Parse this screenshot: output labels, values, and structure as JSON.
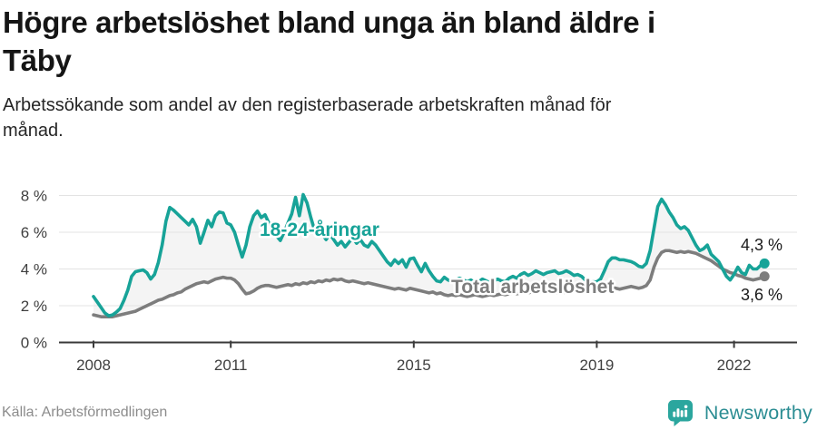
{
  "header": {
    "title_line1": "Högre arbetslöshet bland unga än bland äldre i",
    "title_line2": "Täby",
    "subtitle_line1": "Arbetssökande som andel av den registerbaserade arbetskraften månad för",
    "subtitle_line2": "månad."
  },
  "footer": {
    "source": "Källa: Arbetsförmedlingen",
    "brand": "Newsworthy",
    "brand_text_color": "#2b8d93",
    "logo_badge_color": "#2ba69e"
  },
  "chart_data": {
    "type": "line",
    "x_start": "2008-01",
    "x_end": "2022-09",
    "frequency": "monthly",
    "x_ticks": [
      {
        "label": "2008",
        "year": 2008
      },
      {
        "label": "2011",
        "year": 2011
      },
      {
        "label": "2015",
        "year": 2015
      },
      {
        "label": "2019",
        "year": 2019
      },
      {
        "label": "2022",
        "year": 2022
      }
    ],
    "y_ticks": [
      {
        "label": "0 %",
        "value": 0
      },
      {
        "label": "2 %",
        "value": 2
      },
      {
        "label": "4 %",
        "value": 4
      },
      {
        "label": "6 %",
        "value": 6
      },
      {
        "label": "8 %",
        "value": 8
      }
    ],
    "ylim": [
      0,
      8.5
    ],
    "grid": true,
    "legend_position": "inline-labels",
    "band_fill": "#f4f4f4",
    "grid_color": "#e3e3e3",
    "axis_color": "#3a3a3a",
    "series": [
      {
        "name": "18-24-åringar",
        "inline_label": "18-24-åringar",
        "color": "#17a398",
        "end_label": "4,3 %",
        "end_value": 4.3,
        "values": [
          2.5,
          2.2,
          1.9,
          1.6,
          1.45,
          1.5,
          1.65,
          1.85,
          2.3,
          2.85,
          3.6,
          3.85,
          3.9,
          3.95,
          3.8,
          3.45,
          3.7,
          4.35,
          5.3,
          6.6,
          7.35,
          7.2,
          7.0,
          6.8,
          6.6,
          6.4,
          6.7,
          6.3,
          5.4,
          6.0,
          6.65,
          6.3,
          6.9,
          7.1,
          7.05,
          6.5,
          6.4,
          6.0,
          5.3,
          4.65,
          5.3,
          6.3,
          6.9,
          7.15,
          6.8,
          6.95,
          6.5,
          6.2,
          5.8,
          5.55,
          6.0,
          6.5,
          7.0,
          7.9,
          6.9,
          8.05,
          7.6,
          6.8,
          6.1,
          5.8,
          5.9,
          5.6,
          5.9,
          5.6,
          5.3,
          5.5,
          5.2,
          5.45,
          5.7,
          5.4,
          5.6,
          5.3,
          5.2,
          5.5,
          5.3,
          5.0,
          4.7,
          4.4,
          4.2,
          4.5,
          4.3,
          4.5,
          4.1,
          4.55,
          4.6,
          4.2,
          3.85,
          4.3,
          3.9,
          3.6,
          3.35,
          3.3,
          3.55,
          3.4,
          3.3,
          3.4,
          3.5,
          3.4,
          3.3,
          3.4,
          3.25,
          3.3,
          3.45,
          3.35,
          3.25,
          3.35,
          3.45,
          3.35,
          3.3,
          3.5,
          3.6,
          3.5,
          3.7,
          3.8,
          3.65,
          3.75,
          3.9,
          3.8,
          3.7,
          3.8,
          3.85,
          3.9,
          3.75,
          3.8,
          3.9,
          3.8,
          3.65,
          3.7,
          3.6,
          3.4,
          3.25,
          3.3,
          3.3,
          3.45,
          3.9,
          4.4,
          4.6,
          4.6,
          4.5,
          4.5,
          4.45,
          4.4,
          4.3,
          4.15,
          4.1,
          4.3,
          5.0,
          6.2,
          7.4,
          7.8,
          7.5,
          7.1,
          6.8,
          6.4,
          6.2,
          6.3,
          6.1,
          5.7,
          5.3,
          5.0,
          5.1,
          5.3,
          4.8,
          4.6,
          4.4,
          4.0,
          3.6,
          3.4,
          3.7,
          4.1,
          3.8,
          3.7,
          4.2,
          4.0,
          4.0,
          4.2,
          4.3
        ]
      },
      {
        "name": "Total arbetslöshet",
        "inline_label": "Total arbetslöshet",
        "color": "#7d7d7d",
        "end_label": "3,6 %",
        "end_value": 3.6,
        "values": [
          1.5,
          1.45,
          1.4,
          1.4,
          1.4,
          1.4,
          1.45,
          1.5,
          1.55,
          1.6,
          1.65,
          1.7,
          1.8,
          1.9,
          2.0,
          2.1,
          2.2,
          2.3,
          2.35,
          2.45,
          2.55,
          2.6,
          2.7,
          2.75,
          2.9,
          3.0,
          3.1,
          3.2,
          3.25,
          3.3,
          3.25,
          3.35,
          3.45,
          3.5,
          3.55,
          3.5,
          3.5,
          3.4,
          3.2,
          2.9,
          2.65,
          2.7,
          2.8,
          2.95,
          3.05,
          3.1,
          3.1,
          3.05,
          3.0,
          3.05,
          3.1,
          3.15,
          3.1,
          3.2,
          3.15,
          3.25,
          3.2,
          3.3,
          3.25,
          3.35,
          3.3,
          3.4,
          3.35,
          3.45,
          3.4,
          3.45,
          3.35,
          3.3,
          3.35,
          3.3,
          3.25,
          3.2,
          3.25,
          3.2,
          3.15,
          3.1,
          3.05,
          3.0,
          2.95,
          2.9,
          2.95,
          2.9,
          2.85,
          2.95,
          2.9,
          2.85,
          2.8,
          2.75,
          2.7,
          2.75,
          2.65,
          2.7,
          2.6,
          2.55,
          2.6,
          2.55,
          2.6,
          2.55,
          2.5,
          2.55,
          2.6,
          2.55,
          2.5,
          2.55,
          2.6,
          2.55,
          2.6,
          2.65,
          2.6,
          2.65,
          2.7,
          2.65,
          2.7,
          2.75,
          2.7,
          2.75,
          2.7,
          2.75,
          2.8,
          2.75,
          2.8,
          2.75,
          2.7,
          2.75,
          2.7,
          2.75,
          2.8,
          2.75,
          2.8,
          2.85,
          2.8,
          2.85,
          2.9,
          2.85,
          2.9,
          2.95,
          3.0,
          2.95,
          2.9,
          2.95,
          3.0,
          3.05,
          3.0,
          2.95,
          3.0,
          3.1,
          3.4,
          4.1,
          4.6,
          4.9,
          5.0,
          5.0,
          4.95,
          4.9,
          4.95,
          4.9,
          4.95,
          4.9,
          4.85,
          4.75,
          4.65,
          4.55,
          4.45,
          4.3,
          4.15,
          4.0,
          3.9,
          3.8,
          3.75,
          3.65,
          3.6,
          3.5,
          3.45,
          3.4,
          3.45,
          3.5,
          3.6
        ]
      }
    ]
  }
}
